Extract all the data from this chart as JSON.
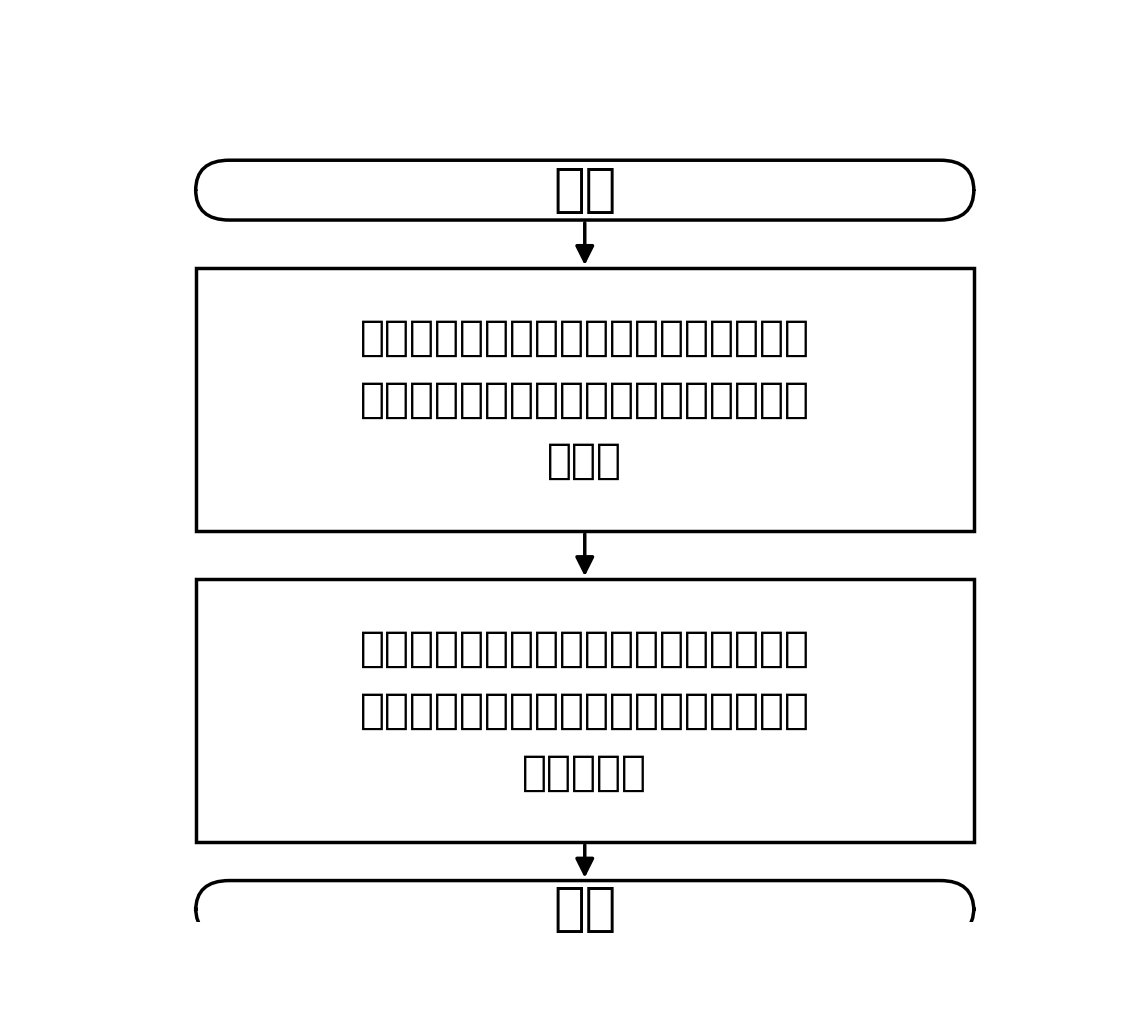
{
  "background_color": "#ffffff",
  "box_edge_color": "#000000",
  "box_fill_color": "#ffffff",
  "arrow_color": "#000000",
  "text_color": "#000000",
  "title_text": "开始",
  "end_text": "结束",
  "box1_line1": "液氮泵将液氮容器中的液氮输送到冷却管",
  "box1_line2": "中，从而对穿过冷却管的高温光纤进行一",
  "box1_line3": "次冷却",
  "box2_line1": "冷却管将冷却后的液氮排出，其中一路液",
  "box2_line2": "氮进入气化器，另一路液氮返回到液氮泵",
  "box2_line3": "中循环利用",
  "font_size_title": 38,
  "font_size_box": 30,
  "line_width": 2.5
}
